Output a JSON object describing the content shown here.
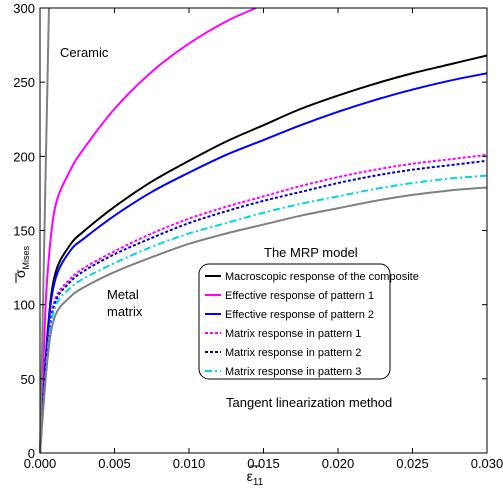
{
  "chart_data": {
    "type": "line",
    "xlim": [
      0,
      0.03
    ],
    "ylim": [
      0,
      300
    ],
    "xticks": [
      "0.000",
      "0.005",
      "0.010",
      "0.015",
      "0.020",
      "0.025",
      "0.030"
    ],
    "xtick_values": [
      0,
      0.005,
      0.01,
      0.015,
      0.02,
      0.025,
      0.03
    ],
    "yticks": [
      "0",
      "50",
      "100",
      "150",
      "200",
      "250",
      "300"
    ],
    "ytick_values": [
      0,
      50,
      100,
      150,
      200,
      250,
      300
    ],
    "xlabel_main": "ε",
    "xlabel_sub": "11",
    "ylabel_main": "σ",
    "ylabel_sub": "Mises",
    "grid": false,
    "annotations": {
      "ceramic": "Ceramic",
      "metal_line1": "Metal",
      "metal_line2": "matrix",
      "model": "The MRP model",
      "method": "Tangent linearization method"
    },
    "legend_placement": "center-right",
    "series": [
      {
        "name": "Macroscopic response of the composite",
        "color": "#000000",
        "style": "solid",
        "x": [
          0,
          0.0005,
          0.001,
          0.002,
          0.003,
          0.005,
          0.0075,
          0.01,
          0.0125,
          0.015,
          0.0175,
          0.02,
          0.0225,
          0.025,
          0.0275,
          0.03
        ],
        "y": [
          0,
          80,
          120,
          140,
          150,
          166,
          183,
          197,
          210,
          221,
          232,
          241,
          249,
          256,
          262,
          268
        ]
      },
      {
        "name": "Effective response of pattern 1",
        "color": "#ff00ff",
        "style": "solid",
        "x": [
          0,
          0.0003,
          0.0005,
          0.001,
          0.002,
          0.003,
          0.005,
          0.0075,
          0.01,
          0.0125,
          0.0145
        ],
        "y": [
          0,
          80,
          120,
          165,
          190,
          206,
          232,
          257,
          276,
          291,
          300
        ]
      },
      {
        "name": "Effective response of pattern 2",
        "color": "#0000ff",
        "style": "solid",
        "x": [
          0,
          0.0005,
          0.001,
          0.002,
          0.003,
          0.005,
          0.0075,
          0.01,
          0.0125,
          0.015,
          0.0175,
          0.02,
          0.0225,
          0.025,
          0.0275,
          0.03
        ],
        "y": [
          0,
          78,
          116,
          136,
          145,
          160,
          176,
          189,
          201,
          211,
          221,
          230,
          238,
          245,
          251,
          256
        ]
      },
      {
        "name": "Matrix response in pattern 1",
        "color": "#ff00ff",
        "style": "dotted",
        "x": [
          0,
          0.0005,
          0.001,
          0.002,
          0.003,
          0.005,
          0.0075,
          0.01,
          0.0125,
          0.015,
          0.0175,
          0.02,
          0.0225,
          0.025,
          0.0275,
          0.03
        ],
        "y": [
          0,
          70,
          103,
          117,
          125,
          136,
          148,
          158,
          166,
          173,
          180,
          186,
          191,
          195,
          198,
          201
        ]
      },
      {
        "name": "Matrix response in pattern 2",
        "color": "#0000cc",
        "style": "dotted",
        "x": [
          0,
          0.0005,
          0.001,
          0.002,
          0.003,
          0.005,
          0.0075,
          0.01,
          0.0125,
          0.015,
          0.0175,
          0.02,
          0.0225,
          0.025,
          0.0275,
          0.03
        ],
        "y": [
          0,
          69,
          101,
          115,
          123,
          134,
          145,
          155,
          163,
          170,
          176,
          182,
          187,
          191,
          194,
          197
        ]
      },
      {
        "name": "Matrix response in pattern 3",
        "color": "#00d5e0",
        "style": "dashdot",
        "x": [
          0,
          0.0005,
          0.001,
          0.002,
          0.003,
          0.005,
          0.0075,
          0.01,
          0.0125,
          0.015,
          0.0175,
          0.02,
          0.0225,
          0.025,
          0.0275,
          0.03
        ],
        "y": [
          0,
          67,
          98,
          111,
          118,
          128,
          139,
          148,
          155,
          162,
          168,
          173,
          178,
          182,
          185,
          187
        ]
      },
      {
        "name": "",
        "color": "#808080",
        "style": "solid",
        "x": [
          0,
          0.0005,
          0.001,
          0.002,
          0.003,
          0.005,
          0.0075,
          0.01,
          0.0125,
          0.015,
          0.0175,
          0.02,
          0.0225,
          0.025,
          0.0275,
          0.03
        ],
        "y": [
          0,
          63,
          92,
          105,
          112,
          122,
          132,
          141,
          148,
          154,
          160,
          165,
          170,
          174,
          177,
          179
        ]
      },
      {
        "name": "",
        "color": "#808080",
        "style": "solid",
        "x": [
          0,
          0.0006
        ],
        "y": [
          0,
          300
        ]
      }
    ]
  }
}
